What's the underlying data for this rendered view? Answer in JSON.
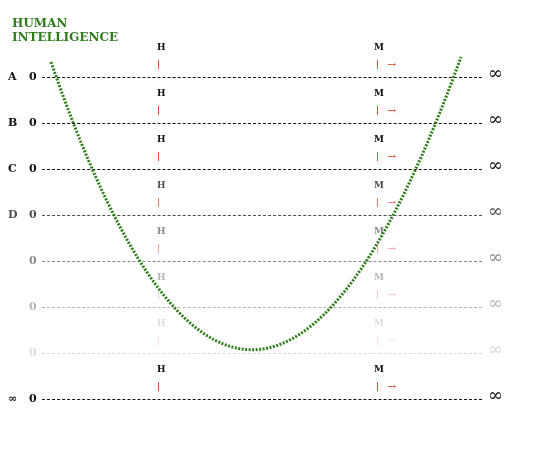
{
  "title": {
    "line1": "HUMAN",
    "line2": "INTELLIGENCE"
  },
  "axis": {
    "zero": "0",
    "infinity": "∞"
  },
  "markers": {
    "human": "H",
    "machine": "M",
    "arrow": "→"
  },
  "rows": [
    {
      "label": "A",
      "opacity": 1.0
    },
    {
      "label": "B",
      "opacity": 1.0
    },
    {
      "label": "C",
      "opacity": 1.0
    },
    {
      "label": "D",
      "opacity": 0.75
    },
    {
      "label": "",
      "opacity": 0.5
    },
    {
      "label": "",
      "opacity": 0.3
    },
    {
      "label": "",
      "opacity": 0.15
    },
    {
      "label": "∞",
      "opacity": 1.0
    }
  ],
  "colors": {
    "curve": "#2e7d1a",
    "tick": "#e05040",
    "text": "#111111"
  }
}
